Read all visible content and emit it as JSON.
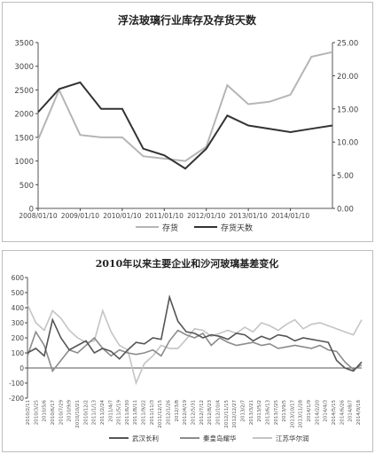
{
  "chart_data": [
    {
      "type": "line",
      "title": "浮法玻璃行业库存及存货天数",
      "x": [
        "2008/01/10",
        "2008/07/10",
        "2009/01/10",
        "2009/07/10",
        "2010/01/10",
        "2010/07/10",
        "2011/01/10",
        "2011/07/10",
        "2012/01/10",
        "2012/07/10",
        "2013/01/10",
        "2013/07/10",
        "2014/01/10",
        "2014/07/10",
        "2014/10/10"
      ],
      "xticks": [
        "2008/01/10",
        "2009/01/10",
        "2010/01/10",
        "2011/01/10",
        "2012/01/10",
        "2013/01/10",
        "2014/01/10"
      ],
      "series": [
        {
          "name": "存货",
          "axis": "left",
          "values": [
            1450,
            2500,
            1550,
            1500,
            1500,
            1100,
            1050,
            1000,
            1300,
            2600,
            2200,
            2250,
            2400,
            3200,
            3300
          ]
        },
        {
          "name": "存货天数",
          "axis": "right",
          "values": [
            14.5,
            18,
            19,
            15,
            15,
            9,
            8,
            6,
            9,
            14,
            12.5,
            12,
            11.5,
            12,
            12.5
          ]
        }
      ],
      "ylim_left": [
        0,
        3500
      ],
      "yticks_left": [
        "0",
        "500",
        "1000",
        "1500",
        "2000",
        "2500",
        "3000",
        "3500"
      ],
      "ylim_right": [
        0,
        25
      ],
      "yticks_right": [
        "0.00",
        "5.00",
        "10.00",
        "15.00",
        "20.00",
        "25.00"
      ],
      "legend_position": "bottom",
      "colors": {
        "存货": "#b5b5b5",
        "存货天数": "#333333"
      }
    },
    {
      "type": "line",
      "title": "2010年以来主要企业和沙河玻璃基差变化",
      "xticks": [
        "2010/2/11",
        "2010/3/25",
        "2010/5/6",
        "2010/6/17",
        "2010/7/29",
        "2010/9/9",
        "2010/10/21",
        "2010/12/2",
        "2011/1/13",
        "2011/2/24",
        "2011/4/7",
        "2011/5/19",
        "2011/6/30",
        "2011/8/11",
        "2011/9/22",
        "2011/11/3",
        "2011/12/15",
        "2012/1/26",
        "2012/3/8",
        "2012/4/19",
        "2012/5/31",
        "2012/7/12",
        "2012/8/23",
        "2012/10/4",
        "2012/11/15",
        "2012/12/27",
        "2013/2/7",
        "2013/3/21",
        "2013/5/2",
        "2013/6/13",
        "2013/7/25",
        "2013/9/5",
        "2013/10/17",
        "2013/11/28",
        "2014/1/9",
        "2014/2/20",
        "2014/4/3",
        "2014/5/15",
        "2014/6/26",
        "2014/8/7",
        "2014/9/18"
      ],
      "series": [
        {
          "name": "武汉长利",
          "values": [
            100,
            130,
            80,
            320,
            200,
            120,
            150,
            180,
            100,
            130,
            110,
            60,
            120,
            170,
            160,
            200,
            190,
            470,
            310,
            240,
            230,
            200,
            220,
            210,
            190,
            230,
            220,
            180,
            210,
            190,
            220,
            210,
            180,
            200,
            190,
            180,
            170,
            50,
            0,
            -20,
            40
          ]
        },
        {
          "name": "秦皇岛耀华",
          "values": [
            80,
            240,
            150,
            -20,
            50,
            120,
            100,
            150,
            200,
            130,
            80,
            120,
            100,
            90,
            100,
            120,
            80,
            180,
            250,
            220,
            200,
            230,
            150,
            200,
            170,
            150,
            160,
            170,
            150,
            160,
            130,
            140,
            150,
            140,
            130,
            150,
            120,
            110,
            40,
            -10,
            20
          ]
        },
        {
          "name": "江苏华尔润",
          "values": [
            420,
            300,
            250,
            380,
            330,
            250,
            200,
            170,
            180,
            380,
            240,
            150,
            120,
            -100,
            30,
            80,
            150,
            130,
            130,
            190,
            260,
            250,
            210,
            230,
            250,
            230,
            270,
            240,
            300,
            280,
            250,
            290,
            320,
            260,
            290,
            300,
            280,
            260,
            240,
            220,
            320
          ]
        }
      ],
      "ylim": [
        -200,
        600
      ],
      "yticks": [
        "-200",
        "-100",
        "0",
        "100",
        "200",
        "300",
        "400",
        "500",
        "600"
      ],
      "legend_position": "bottom",
      "colors": {
        "武汉长利": "#555555",
        "秦皇岛耀华": "#8c8c8c",
        "江苏华尔润": "#c4c4c4"
      }
    }
  ]
}
